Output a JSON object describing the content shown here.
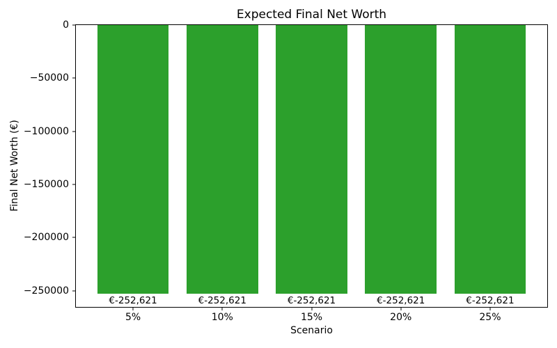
{
  "chart_data": {
    "type": "bar",
    "title": "Expected Final Net Worth",
    "xlabel": "Scenario",
    "ylabel": "Final Net Worth (€)",
    "categories": [
      "5%",
      "10%",
      "15%",
      "20%",
      "25%"
    ],
    "values": [
      -252621,
      -252621,
      -252621,
      -252621,
      -252621
    ],
    "bar_labels": [
      "€-252,621",
      "€-252,621",
      "€-252,621",
      "€-252,621",
      "€-252,621"
    ],
    "y_ticks": [
      0,
      -50000,
      -100000,
      -150000,
      -200000,
      -250000
    ],
    "y_tick_labels": [
      "0",
      "−50000",
      "−100000",
      "−150000",
      "−200000",
      "−250000"
    ],
    "ylim": [
      -265252,
      0
    ],
    "bar_color": "#2ca02c",
    "bar_width_frac": 0.8,
    "grid": false,
    "legend": null
  }
}
